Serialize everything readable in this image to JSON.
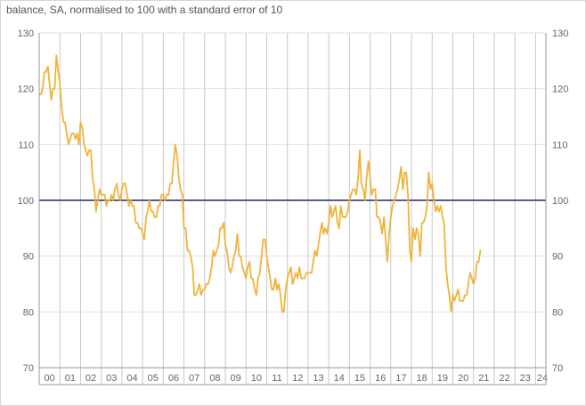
{
  "chart_data": {
    "type": "line",
    "title": "",
    "subtitle": "balance, SA, normalised to 100 with a standard error of 10",
    "xlabel": "",
    "ylabel": "",
    "ylim": [
      70,
      130
    ],
    "y_ticks": [
      70,
      80,
      90,
      100,
      110,
      120,
      130
    ],
    "x_ticks": [
      "00",
      "01",
      "02",
      "03",
      "04",
      "05",
      "06",
      "07",
      "08",
      "09",
      "10",
      "11",
      "12",
      "13",
      "14",
      "15",
      "16",
      "17",
      "18",
      "19",
      "20",
      "21",
      "22",
      "23",
      "24"
    ],
    "x_range": [
      2000,
      2024.5
    ],
    "grid": true,
    "legend": "none",
    "reference_line": {
      "y": 100,
      "color": "#5c5c8a"
    },
    "series": [
      {
        "color": "#f0b43c",
        "points": [
          [
            2000.0,
            119
          ],
          [
            2000.08,
            119
          ],
          [
            2000.17,
            120
          ],
          [
            2000.25,
            123
          ],
          [
            2000.33,
            123
          ],
          [
            2000.42,
            124
          ],
          [
            2000.5,
            121
          ],
          [
            2000.58,
            118
          ],
          [
            2000.67,
            120
          ],
          [
            2000.75,
            120
          ],
          [
            2000.83,
            126
          ],
          [
            2000.92,
            123
          ],
          [
            2001.0,
            121
          ],
          [
            2001.08,
            117
          ],
          [
            2001.17,
            114
          ],
          [
            2001.25,
            114
          ],
          [
            2001.33,
            112
          ],
          [
            2001.42,
            110
          ],
          [
            2001.5,
            111
          ],
          [
            2001.58,
            112
          ],
          [
            2001.67,
            112
          ],
          [
            2001.75,
            111
          ],
          [
            2001.83,
            112
          ],
          [
            2001.92,
            110
          ],
          [
            2002.0,
            114
          ],
          [
            2002.08,
            113
          ],
          [
            2002.17,
            110
          ],
          [
            2002.25,
            109
          ],
          [
            2002.33,
            108
          ],
          [
            2002.42,
            109
          ],
          [
            2002.5,
            109
          ],
          [
            2002.58,
            104
          ],
          [
            2002.67,
            102
          ],
          [
            2002.75,
            98
          ],
          [
            2002.83,
            100
          ],
          [
            2002.92,
            102
          ],
          [
            2003.0,
            101
          ],
          [
            2003.08,
            101
          ],
          [
            2003.17,
            101
          ],
          [
            2003.25,
            99
          ],
          [
            2003.33,
            100
          ],
          [
            2003.42,
            100
          ],
          [
            2003.5,
            101
          ],
          [
            2003.58,
            100
          ],
          [
            2003.67,
            102
          ],
          [
            2003.75,
            103
          ],
          [
            2003.83,
            101
          ],
          [
            2003.92,
            100
          ],
          [
            2004.0,
            102
          ],
          [
            2004.08,
            103
          ],
          [
            2004.17,
            103
          ],
          [
            2004.25,
            101
          ],
          [
            2004.33,
            99
          ],
          [
            2004.42,
            100
          ],
          [
            2004.5,
            99
          ],
          [
            2004.58,
            99
          ],
          [
            2004.67,
            96
          ],
          [
            2004.75,
            96
          ],
          [
            2004.83,
            95
          ],
          [
            2004.92,
            95
          ],
          [
            2005.0,
            94
          ],
          [
            2005.08,
            93
          ],
          [
            2005.17,
            97
          ],
          [
            2005.25,
            98
          ],
          [
            2005.33,
            100
          ],
          [
            2005.42,
            98
          ],
          [
            2005.5,
            98
          ],
          [
            2005.58,
            97
          ],
          [
            2005.67,
            97
          ],
          [
            2005.75,
            99
          ],
          [
            2005.83,
            99
          ],
          [
            2005.92,
            101
          ],
          [
            2006.0,
            101
          ],
          [
            2006.08,
            100
          ],
          [
            2006.17,
            101
          ],
          [
            2006.25,
            101
          ],
          [
            2006.33,
            103
          ],
          [
            2006.42,
            103
          ],
          [
            2006.5,
            107
          ],
          [
            2006.58,
            110
          ],
          [
            2006.67,
            108
          ],
          [
            2006.75,
            104
          ],
          [
            2006.83,
            102
          ],
          [
            2006.92,
            101
          ],
          [
            2007.0,
            95
          ],
          [
            2007.08,
            95
          ],
          [
            2007.17,
            91
          ],
          [
            2007.25,
            91
          ],
          [
            2007.33,
            90
          ],
          [
            2007.42,
            88
          ],
          [
            2007.5,
            83
          ],
          [
            2007.58,
            83
          ],
          [
            2007.67,
            84
          ],
          [
            2007.75,
            85
          ],
          [
            2007.83,
            83
          ],
          [
            2007.92,
            84
          ],
          [
            2008.0,
            84
          ],
          [
            2008.08,
            85
          ],
          [
            2008.17,
            85
          ],
          [
            2008.25,
            86
          ],
          [
            2008.33,
            88
          ],
          [
            2008.42,
            91
          ],
          [
            2008.5,
            90
          ],
          [
            2008.58,
            91
          ],
          [
            2008.67,
            92
          ],
          [
            2008.75,
            95
          ],
          [
            2008.83,
            95
          ],
          [
            2008.92,
            96
          ],
          [
            2009.0,
            92
          ],
          [
            2009.08,
            91
          ],
          [
            2009.17,
            88
          ],
          [
            2009.25,
            87
          ],
          [
            2009.33,
            88
          ],
          [
            2009.42,
            90
          ],
          [
            2009.5,
            91
          ],
          [
            2009.58,
            94
          ],
          [
            2009.67,
            90
          ],
          [
            2009.75,
            90
          ],
          [
            2009.83,
            88
          ],
          [
            2009.92,
            87
          ],
          [
            2010.0,
            86
          ],
          [
            2010.08,
            88
          ],
          [
            2010.17,
            89
          ],
          [
            2010.25,
            86
          ],
          [
            2010.33,
            86
          ],
          [
            2010.42,
            84
          ],
          [
            2010.5,
            83
          ],
          [
            2010.58,
            86
          ],
          [
            2010.67,
            87
          ],
          [
            2010.75,
            90
          ],
          [
            2010.83,
            93
          ],
          [
            2010.92,
            93
          ],
          [
            2011.0,
            90
          ],
          [
            2011.08,
            88
          ],
          [
            2011.17,
            86
          ],
          [
            2011.25,
            84
          ],
          [
            2011.33,
            84
          ],
          [
            2011.42,
            86
          ],
          [
            2011.5,
            84
          ],
          [
            2011.58,
            85
          ],
          [
            2011.67,
            83
          ],
          [
            2011.75,
            80
          ],
          [
            2011.83,
            80
          ],
          [
            2011.92,
            84
          ],
          [
            2012.0,
            86
          ],
          [
            2012.08,
            87
          ],
          [
            2012.17,
            88
          ],
          [
            2012.25,
            85
          ],
          [
            2012.33,
            86
          ],
          [
            2012.42,
            87
          ],
          [
            2012.5,
            86
          ],
          [
            2012.58,
            88
          ],
          [
            2012.67,
            86
          ],
          [
            2012.75,
            86
          ],
          [
            2012.83,
            86
          ],
          [
            2012.92,
            87
          ],
          [
            2013.0,
            87
          ],
          [
            2013.08,
            87
          ],
          [
            2013.17,
            87
          ],
          [
            2013.25,
            89
          ],
          [
            2013.33,
            91
          ],
          [
            2013.42,
            90
          ],
          [
            2013.5,
            92
          ],
          [
            2013.58,
            94
          ],
          [
            2013.67,
            96
          ],
          [
            2013.75,
            94
          ],
          [
            2013.83,
            95
          ],
          [
            2013.92,
            94
          ],
          [
            2014.0,
            96
          ],
          [
            2014.08,
            99
          ],
          [
            2014.17,
            97
          ],
          [
            2014.25,
            98
          ],
          [
            2014.33,
            99
          ],
          [
            2014.42,
            96
          ],
          [
            2014.5,
            95
          ],
          [
            2014.58,
            99
          ],
          [
            2014.67,
            97
          ],
          [
            2014.75,
            97
          ],
          [
            2014.83,
            97
          ],
          [
            2014.92,
            98
          ],
          [
            2015.0,
            100
          ],
          [
            2015.08,
            101
          ],
          [
            2015.17,
            102
          ],
          [
            2015.25,
            102
          ],
          [
            2015.33,
            101
          ],
          [
            2015.42,
            104
          ],
          [
            2015.5,
            109
          ],
          [
            2015.58,
            103
          ],
          [
            2015.67,
            102
          ],
          [
            2015.75,
            100
          ],
          [
            2015.83,
            104
          ],
          [
            2015.92,
            107
          ],
          [
            2016.0,
            104
          ],
          [
            2016.08,
            101
          ],
          [
            2016.17,
            102
          ],
          [
            2016.25,
            102
          ],
          [
            2016.33,
            97
          ],
          [
            2016.42,
            97
          ],
          [
            2016.5,
            96
          ],
          [
            2016.58,
            94
          ],
          [
            2016.67,
            97
          ],
          [
            2016.75,
            93
          ],
          [
            2016.83,
            89
          ],
          [
            2016.92,
            94
          ],
          [
            2017.0,
            97
          ],
          [
            2017.08,
            99
          ],
          [
            2017.17,
            100
          ],
          [
            2017.25,
            101
          ],
          [
            2017.33,
            102
          ],
          [
            2017.42,
            104
          ],
          [
            2017.5,
            106
          ],
          [
            2017.58,
            102
          ],
          [
            2017.67,
            105
          ],
          [
            2017.75,
            105
          ],
          [
            2017.83,
            101
          ],
          [
            2017.92,
            91
          ],
          [
            2018.0,
            89
          ],
          [
            2018.08,
            95
          ],
          [
            2018.17,
            93
          ],
          [
            2018.25,
            95
          ],
          [
            2018.33,
            94
          ],
          [
            2018.42,
            90
          ],
          [
            2018.5,
            96
          ],
          [
            2018.58,
            96
          ],
          [
            2018.67,
            97
          ],
          [
            2018.75,
            99
          ],
          [
            2018.83,
            105
          ],
          [
            2018.92,
            102
          ],
          [
            2019.0,
            103
          ],
          [
            2019.08,
            100
          ],
          [
            2019.17,
            98
          ],
          [
            2019.25,
            99
          ],
          [
            2019.33,
            98
          ],
          [
            2019.42,
            99
          ],
          [
            2019.5,
            97
          ],
          [
            2019.58,
            96
          ],
          [
            2019.67,
            88
          ],
          [
            2019.75,
            85
          ],
          [
            2019.83,
            83
          ],
          [
            2019.92,
            80
          ],
          [
            2020.0,
            83
          ],
          [
            2020.08,
            82
          ],
          [
            2020.17,
            83
          ],
          [
            2020.25,
            84
          ],
          [
            2020.33,
            82
          ],
          [
            2020.42,
            82
          ],
          [
            2020.5,
            82
          ],
          [
            2020.58,
            83
          ],
          [
            2020.67,
            83
          ],
          [
            2020.75,
            85
          ],
          [
            2020.83,
            87
          ],
          [
            2020.92,
            86
          ],
          [
            2021.0,
            85
          ],
          [
            2021.08,
            86
          ],
          [
            2021.17,
            89
          ],
          [
            2021.25,
            89
          ],
          [
            2021.33,
            91
          ]
        ]
      }
    ]
  }
}
